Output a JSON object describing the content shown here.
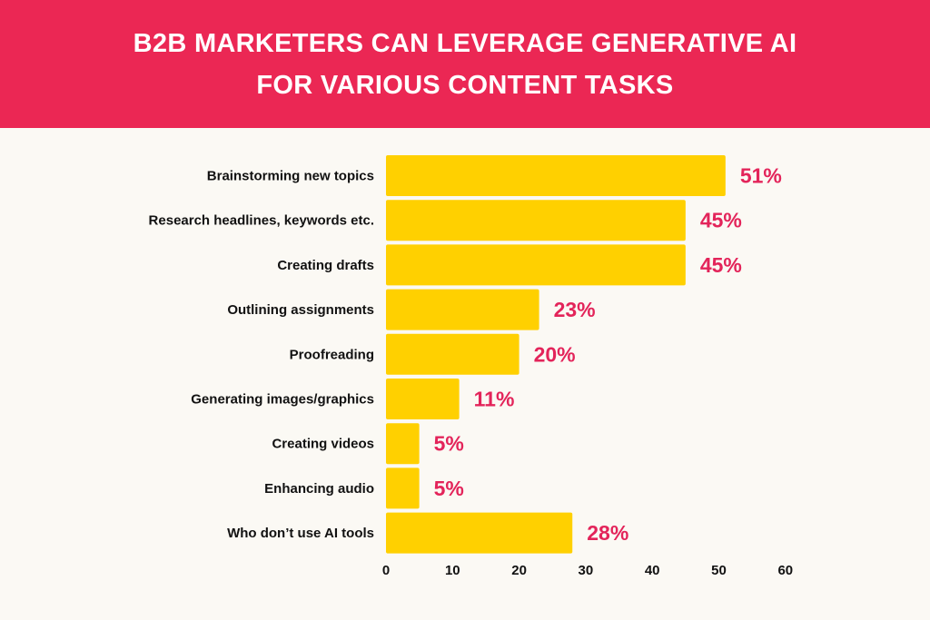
{
  "header": {
    "title_line1": "B2B MARKETERS CAN LEVERAGE GENERATIVE AI",
    "title_line2": "FOR VARIOUS CONTENT TASKS"
  },
  "colors": {
    "header_bg": "#eb2754",
    "bar": "#ffd000",
    "value_text": "#e3245a",
    "background": "#fbf9f4"
  },
  "chart_data": {
    "type": "bar",
    "orientation": "horizontal",
    "title": "B2B MARKETERS CAN LEVERAGE GENERATIVE AI FOR VARIOUS CONTENT TASKS",
    "categories": [
      "Brainstorming new topics",
      "Research headlines, keywords etc.",
      "Creating drafts",
      "Outlining assignments",
      "Proofreading",
      "Generating images/graphics",
      "Creating videos",
      "Enhancing audio",
      "Who don’t use AI tools"
    ],
    "values": [
      51,
      45,
      45,
      23,
      20,
      11,
      5,
      5,
      28
    ],
    "value_labels": [
      "51%",
      "45%",
      "45%",
      "23%",
      "20%",
      "11%",
      "5%",
      "5%",
      "28%"
    ],
    "xlim": [
      0,
      60
    ],
    "xticks": [
      0,
      10,
      20,
      30,
      40,
      50,
      60
    ],
    "xlabel": "",
    "ylabel": "",
    "grid": false
  }
}
